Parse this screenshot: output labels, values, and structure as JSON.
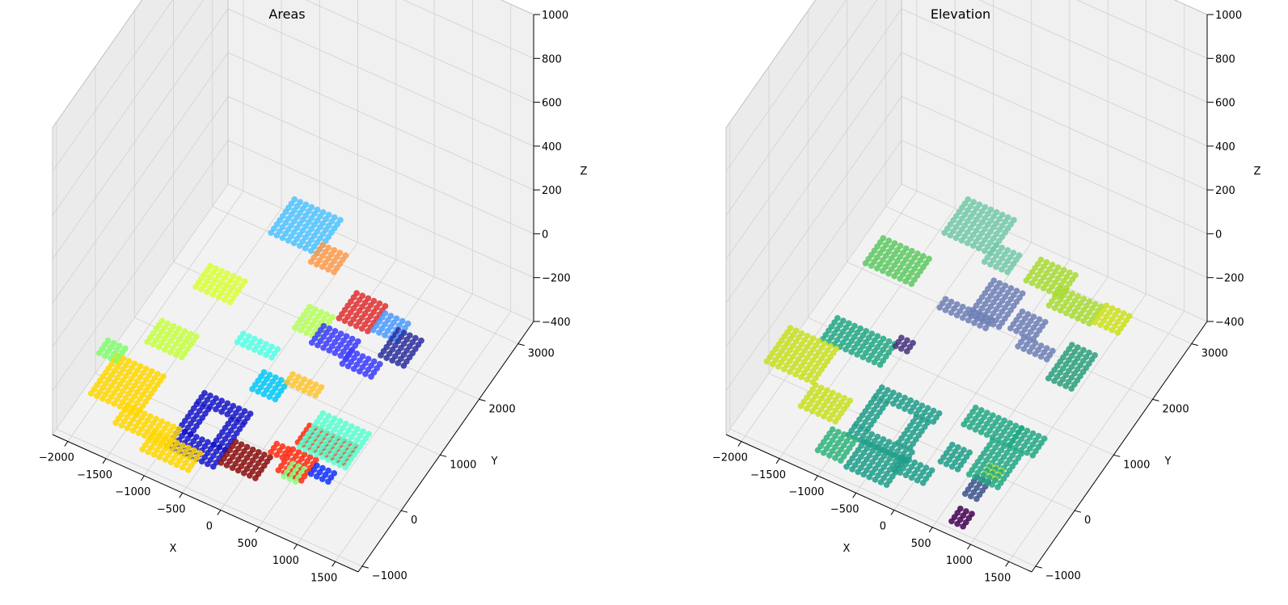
{
  "chart_data": [
    {
      "type": "scatter",
      "projection": "3d",
      "title": "Areas",
      "xlabel": "X",
      "ylabel": "Y",
      "zlabel": "Z",
      "xlim": [
        -2200,
        1800
      ],
      "ylim": [
        -1100,
        3400
      ],
      "zlim": [
        -400,
        1000
      ],
      "xticks": [
        -2000,
        -1500,
        -1000,
        -500,
        0,
        500,
        1000,
        1500
      ],
      "yticks": [
        -1000,
        0,
        1000,
        2000,
        3000
      ],
      "zticks": [
        -400,
        -200,
        0,
        200,
        400,
        600,
        800,
        1000
      ],
      "grid": true,
      "colormap": "jet",
      "colorscale": "area id",
      "series": [
        {
          "color": "#ffd700",
          "rects": [
            [
              -1950,
              -1300,
              -600,
              100
            ],
            [
              -1500,
              -800,
              -850,
              -550
            ],
            [
              -1050,
              -400,
              -1050,
              -750
            ]
          ],
          "z": [
            -300
          ]
        },
        {
          "color": "#7fff6b",
          "rects": [
            [
              -2150,
              -1900,
              0,
              250
            ]
          ],
          "z": [
            -300
          ]
        },
        {
          "color": "#c6ff3f",
          "rects": [
            [
              -1750,
              -1300,
              450,
              850
            ]
          ],
          "z": [
            -300
          ]
        },
        {
          "color": "#d9ff36",
          "rects": [
            [
              -1500,
              -1000,
              1200,
              1600
            ]
          ],
          "z": [
            -200
          ]
        },
        {
          "color": "#4fc3ff",
          "rects": [
            [
              -1050,
              -450,
              2250,
              2850
            ]
          ],
          "z": [
            -150
          ]
        },
        {
          "color": "#ff9a4a",
          "rects": [
            [
              -450,
              -100,
              2100,
              2450
            ]
          ],
          "z": [
            -150
          ]
        },
        {
          "color": "#b6ff59",
          "rects": [
            [
              -150,
              150,
              1100,
              1500
            ]
          ],
          "z": [
            -150
          ]
        },
        {
          "color": "#55ffe5",
          "rects": [
            [
              -700,
              -200,
              700,
              900
            ]
          ],
          "z": [
            -200
          ]
        },
        {
          "color": "#00c8f7",
          "rects": [
            [
              -300,
              0,
              300,
              600
            ]
          ],
          "z": [
            -250
          ]
        },
        {
          "color": "#ffc42e",
          "rects": [
            [
              0,
              400,
              600,
              800
            ]
          ],
          "z": [
            -250
          ]
        },
        {
          "color": "#1515c8",
          "rects": [
            [
              -900,
              -300,
              -700,
              -400
            ],
            [
              -900,
              -700,
              -400,
              100
            ],
            [
              -900,
              -300,
              100,
              250
            ],
            [
              -450,
              -300,
              -400,
              100
            ]
          ],
          "z": [
            -350
          ]
        },
        {
          "color": "#8b0d0d",
          "rects": [
            [
              -250,
              200,
              -600,
              -200
            ]
          ],
          "z": [
            -350
          ]
        },
        {
          "color": "#ff2a10",
          "rects": [
            [
              250,
              450,
              -300,
              -100
            ],
            [
              450,
              800,
              -500,
              -100
            ],
            [
              450,
              1100,
              0,
              300
            ]
          ],
          "z": [
            -300
          ]
        },
        {
          "color": "#e03030",
          "rects": [
            [
              300,
              700,
              1350,
              1800
            ]
          ],
          "z": [
            -100
          ]
        },
        {
          "color": "#3b3bff",
          "rects": [
            [
              200,
              650,
              850,
              1150
            ],
            [
              650,
              1050,
              750,
              1000
            ]
          ],
          "z": [
            -100
          ]
        },
        {
          "color": "#4a9bff",
          "rects": [
            [
              800,
              1150,
              1250,
              1550
            ]
          ],
          "z": [
            -50
          ]
        },
        {
          "color": "#2b2f9e",
          "rects": [
            [
              1050,
              1350,
              950,
              1400
            ]
          ],
          "z": [
            -50
          ]
        },
        {
          "color": "#59ffd0",
          "rects": [
            [
              650,
              1250,
              -350,
              300
            ]
          ],
          "z": [
            -200
          ]
        },
        {
          "color": "#8cff85",
          "rects": [
            [
              550,
              750,
              -550,
              -300
            ]
          ],
          "z": [
            -300
          ]
        },
        {
          "color": "#1030ff",
          "rects": [
            [
              800,
              1050,
              -350,
              -150
            ]
          ],
          "z": [
            -300
          ]
        }
      ]
    },
    {
      "type": "scatter",
      "projection": "3d",
      "title": "Elevation",
      "xlabel": "X",
      "ylabel": "Y",
      "zlabel": "Z",
      "xlim": [
        -2200,
        1800
      ],
      "ylim": [
        -1100,
        3400
      ],
      "zlim": [
        -400,
        1000
      ],
      "xticks": [
        -2000,
        -1500,
        -1000,
        -500,
        0,
        500,
        1000,
        1500
      ],
      "yticks": [
        -1000,
        0,
        1000,
        2000,
        3000
      ],
      "zticks": [
        -400,
        -200,
        0,
        200,
        400,
        600,
        800,
        1000
      ],
      "grid": true,
      "colormap": "viridis",
      "colorscale": "z",
      "series": [
        {
          "color": "#c8e020",
          "rects": [
            [
              -2150,
              -1500,
              -150,
              450
            ],
            [
              -1500,
              -1000,
              -550,
              -150
            ]
          ],
          "z": [
            -300
          ]
        },
        {
          "color": "#2fb47c",
          "rects": [
            [
              -1100,
              -750,
              -900,
              -500
            ]
          ],
          "z": [
            -350
          ]
        },
        {
          "color": "#1f9e89",
          "rects": [
            [
              -700,
              -150,
              -950,
              -500
            ],
            [
              -900,
              -150,
              -500,
              -300
            ],
            [
              -900,
              -700,
              -300,
              200
            ],
            [
              -350,
              -150,
              -300,
              200
            ],
            [
              -900,
              -150,
              200,
              350
            ],
            [
              -200,
              200,
              -700,
              -450
            ],
            [
              200,
              450,
              -300,
              0
            ]
          ],
          "z": [
            -350
          ]
        },
        {
          "color": "#22a884",
          "rects": [
            [
              -1750,
              -1000,
              500,
              900
            ],
            [
              250,
              850,
              200,
              500
            ],
            [
              650,
              1050,
              -450,
              200
            ],
            [
              850,
              1150,
              200,
              500
            ]
          ],
          "z": [
            -300
          ]
        },
        {
          "color": "#5ec962",
          "rects": [
            [
              -1700,
              -1100,
              1500,
              2000
            ]
          ],
          "z": [
            -200
          ]
        },
        {
          "color": "#73c9a8",
          "rects": [
            [
              -1050,
              -450,
              2250,
              2850
            ],
            [
              -450,
              -100,
              2100,
              2400
            ]
          ],
          "z": [
            -150
          ]
        },
        {
          "color": "#6d7fb6",
          "rects": [
            [
              -150,
              250,
              1150,
              1750
            ],
            [
              -500,
              150,
              1050,
              1250
            ],
            [
              350,
              650,
              1200,
              1550
            ],
            [
              550,
              950,
              1000,
              1200
            ]
          ],
          "z": [
            -100
          ]
        },
        {
          "color": "#a8db34",
          "rects": [
            [
              250,
              700,
              1800,
              2200
            ],
            [
              650,
              1200,
              1600,
              1950
            ]
          ],
          "z": [
            -50
          ]
        },
        {
          "color": "#cde11d",
          "rects": [
            [
              1300,
              1600,
              1500,
              1800
            ]
          ],
          "z": [
            0
          ]
        },
        {
          "color": "#2ba07d",
          "rects": [
            [
              1000,
              1350,
              900,
              1500
            ]
          ],
          "z": [
            -150
          ]
        },
        {
          "color": "#3b528b",
          "rects": [
            [
              700,
              900,
              -650,
              -300
            ]
          ],
          "z": [
            -330
          ]
        },
        {
          "color": "#440154",
          "rects": [
            [
              650,
              850,
              -900,
              -650
            ]
          ],
          "z": [
            -400
          ]
        },
        {
          "color": "#46327e",
          "rects": [
            [
              -900,
              -700,
              700,
              900
            ]
          ],
          "z": [
            -250
          ]
        },
        {
          "color": "#95d840",
          "rects": [
            [
              800,
              1000,
              -350,
              -150
            ]
          ],
          "z": [
            -300
          ]
        }
      ]
    }
  ]
}
